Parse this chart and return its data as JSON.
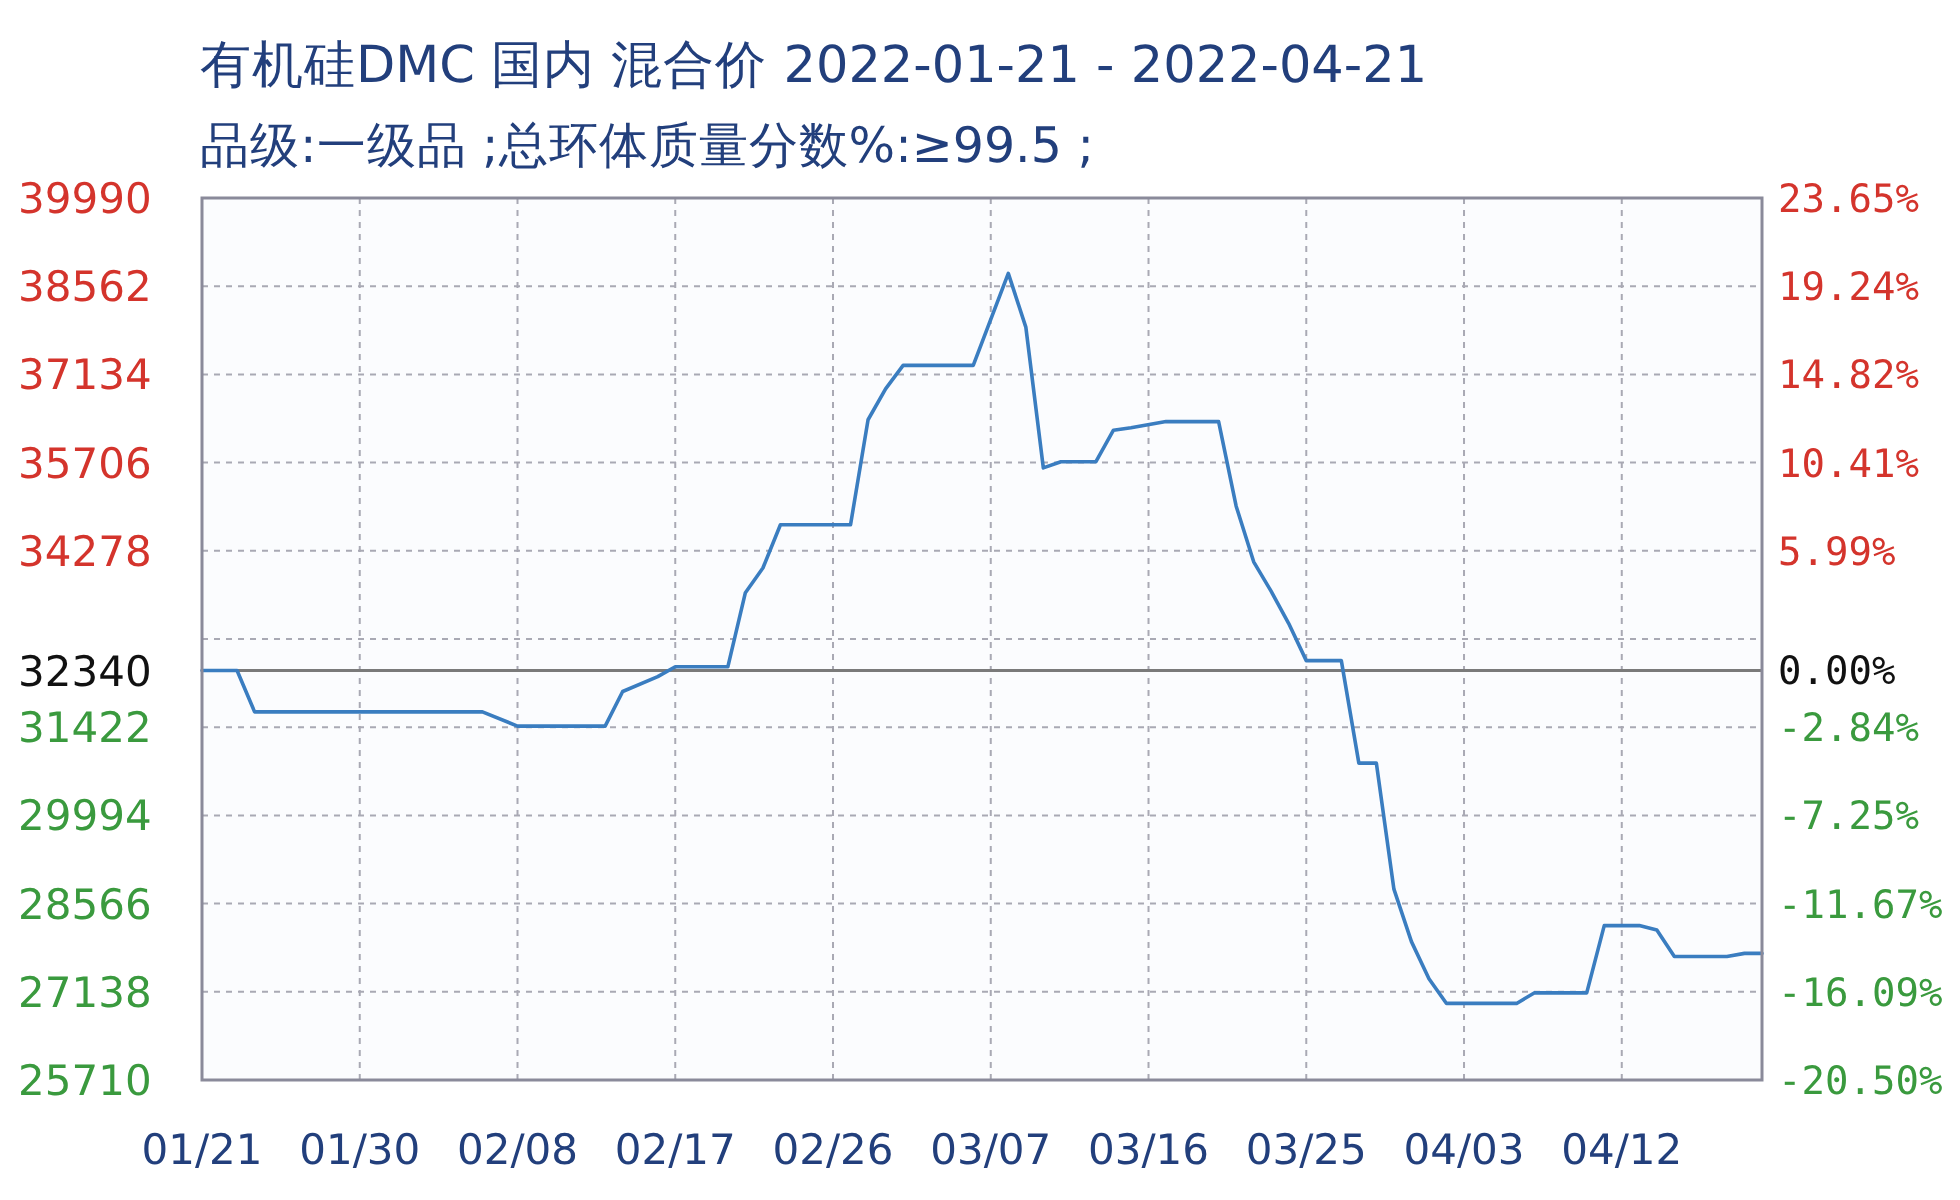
{
  "chart_data": {
    "type": "line",
    "title": "有机硅DMC 国内 混合价 2022-01-21 - 2022-04-21",
    "subtitle": "品级:一级品 ;总环体质量分数%:≥99.5 ;",
    "x": [
      "2022-01-21",
      "2022-01-23",
      "2022-01-24",
      "2022-02-06",
      "2022-02-08",
      "2022-02-13",
      "2022-02-14",
      "2022-02-16",
      "2022-02-17",
      "2022-02-20",
      "2022-02-21",
      "2022-02-22",
      "2022-02-23",
      "2022-02-27",
      "2022-02-28",
      "2022-03-01",
      "2022-03-02",
      "2022-03-06",
      "2022-03-08",
      "2022-03-09",
      "2022-03-10",
      "2022-03-11",
      "2022-03-13",
      "2022-03-14",
      "2022-03-15",
      "2022-03-17",
      "2022-03-20",
      "2022-03-21",
      "2022-03-22",
      "2022-03-23",
      "2022-03-24",
      "2022-03-25",
      "2022-03-27",
      "2022-03-28",
      "2022-03-29",
      "2022-03-30",
      "2022-03-31",
      "2022-04-01",
      "2022-04-02",
      "2022-04-06",
      "2022-04-07",
      "2022-04-10",
      "2022-04-11",
      "2022-04-13",
      "2022-04-14",
      "2022-04-15",
      "2022-04-18",
      "2022-04-19",
      "2022-04-20"
    ],
    "series": [
      {
        "color": "#3a7dc0",
        "values": [
          32340,
          32340,
          31670,
          31670,
          31440,
          31440,
          32000,
          32240,
          32400,
          32400,
          33600,
          34000,
          34700,
          34700,
          36400,
          36900,
          37280,
          37280,
          38770,
          37900,
          35620,
          35720,
          35720,
          36230,
          36270,
          36370,
          36370,
          35000,
          34100,
          33620,
          33100,
          32500,
          32500,
          30840,
          30840,
          28800,
          27950,
          27350,
          26950,
          26950,
          27120,
          27120,
          28210,
          28210,
          28140,
          27710,
          27710,
          27760,
          27760
        ]
      }
    ],
    "xlim": [
      "2022-01-21",
      "2022-04-20"
    ],
    "xticks": [
      {
        "value": "2022-01-21",
        "label": "01/21"
      },
      {
        "value": "2022-01-30",
        "label": "01/30"
      },
      {
        "value": "2022-02-08",
        "label": "02/08"
      },
      {
        "value": "2022-02-17",
        "label": "02/17"
      },
      {
        "value": "2022-02-26",
        "label": "02/26"
      },
      {
        "value": "2022-03-07",
        "label": "03/07"
      },
      {
        "value": "2022-03-16",
        "label": "03/16"
      },
      {
        "value": "2022-03-25",
        "label": "03/25"
      },
      {
        "value": "2022-04-03",
        "label": "04/03"
      },
      {
        "value": "2022-04-12",
        "label": "04/12"
      }
    ],
    "ylim": [
      25710,
      39990
    ],
    "yticks": [
      25710,
      27138,
      28566,
      29994,
      31422,
      32340,
      {
        "value": 32850,
        "label": null
      },
      34278,
      35706,
      37134,
      38562,
      39990
    ],
    "y2lim": [
      -20.5,
      23.65
    ],
    "y2ticks": [
      {
        "value": -20.5,
        "label": "-20.50%"
      },
      {
        "value": -16.09,
        "label": "-16.09%"
      },
      {
        "value": -11.67,
        "label": "-11.67%"
      },
      {
        "value": -7.25,
        "label": "-7.25%"
      },
      {
        "value": -2.84,
        "label": "-2.84%"
      },
      {
        "value": 0,
        "label": "0.00%"
      },
      {
        "value": 5.99,
        "label": "5.99%"
      },
      {
        "value": 10.41,
        "label": "10.41%"
      },
      {
        "value": 14.82,
        "label": "14.82%"
      },
      {
        "value": 19.24,
        "label": "19.24%"
      },
      {
        "value": 23.65,
        "label": "23.65%"
      }
    ],
    "ref_lines": [
      {
        "axis": "y",
        "value": 32340,
        "color": "#7a7a7a"
      }
    ],
    "grid": true
  }
}
